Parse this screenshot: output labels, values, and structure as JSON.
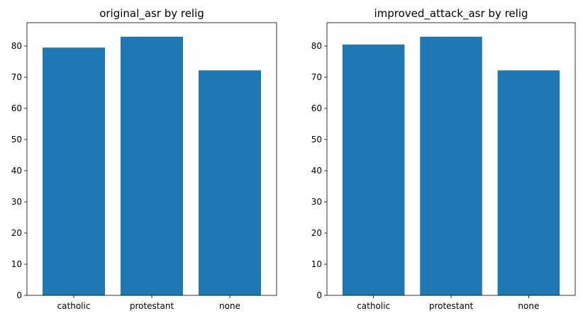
{
  "chart_data": [
    {
      "type": "bar",
      "title": "original_asr by relig",
      "xlabel": "",
      "ylabel": "",
      "categories": [
        "catholic",
        "protestant",
        "none"
      ],
      "values": [
        79.5,
        83.0,
        72.2
      ],
      "ylim": [
        0,
        87.5
      ],
      "yticks": [
        0,
        10,
        20,
        30,
        40,
        50,
        60,
        70,
        80
      ],
      "bar_color": "#1f77b4",
      "grid": false,
      "legend": "none"
    },
    {
      "type": "bar",
      "title": "improved_attack_asr by relig",
      "xlabel": "",
      "ylabel": "",
      "categories": [
        "catholic",
        "protestant",
        "none"
      ],
      "values": [
        80.5,
        83.0,
        72.2
      ],
      "ylim": [
        0,
        87.5
      ],
      "yticks": [
        0,
        10,
        20,
        30,
        40,
        50,
        60,
        70,
        80
      ],
      "bar_color": "#1f77b4",
      "grid": false,
      "legend": "none"
    }
  ]
}
